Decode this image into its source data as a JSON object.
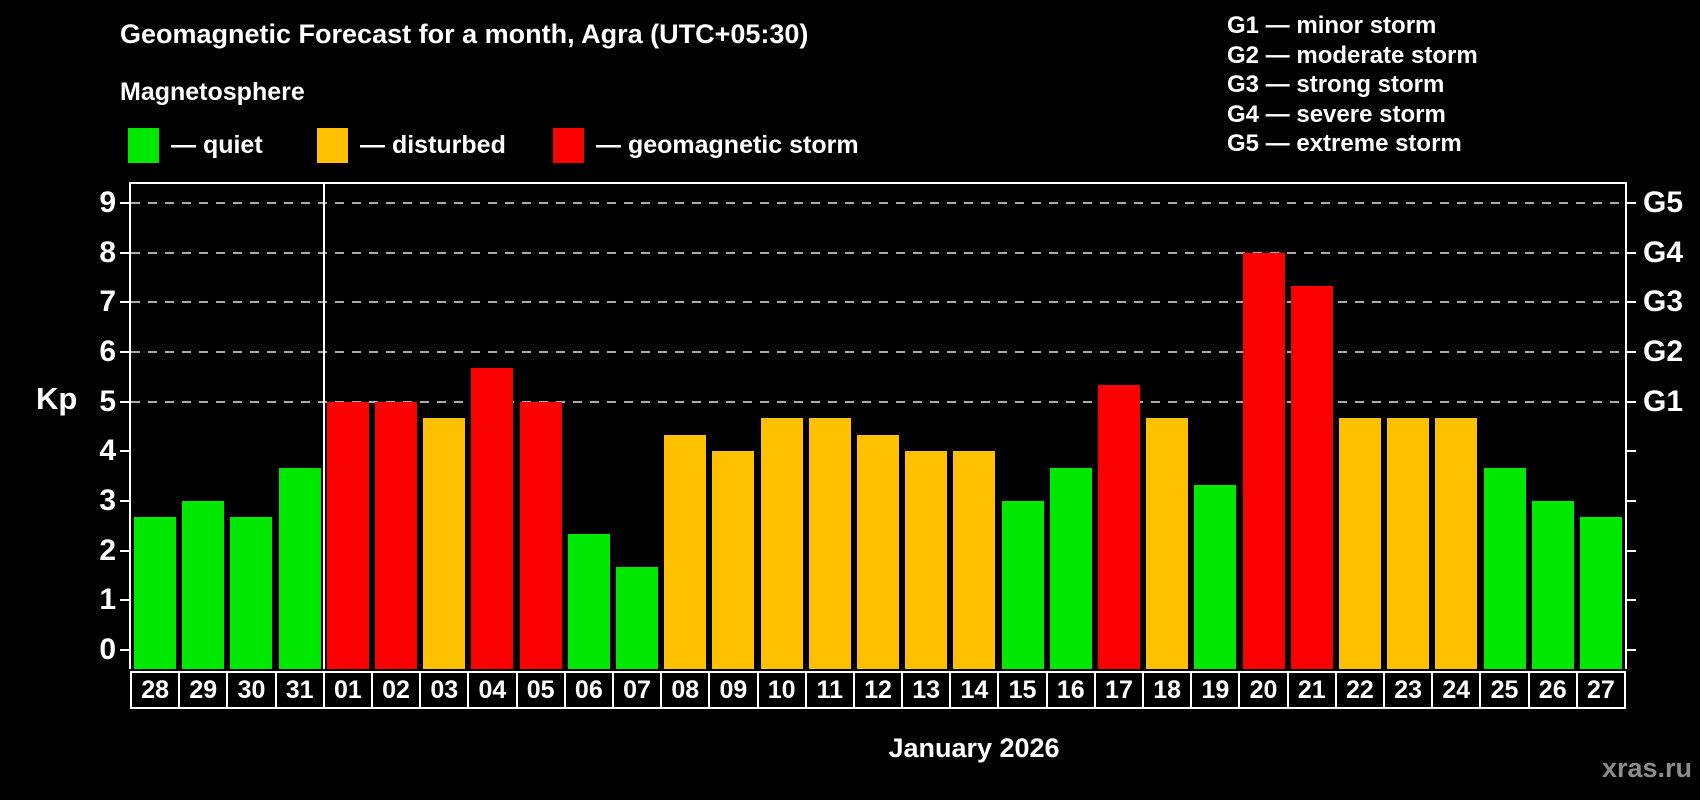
{
  "chart_data": {
    "type": "bar",
    "title": "Geomagnetic Forecast for a month, Agra (UTC+05:30)",
    "subtitle": "Magnetosphere",
    "xlabel": "January 2026",
    "ylabel": "Kp",
    "watermark": "xras.ru",
    "ylim": [
      0,
      9
    ],
    "yticks": [
      0,
      1,
      2,
      3,
      4,
      5,
      6,
      7,
      8,
      9
    ],
    "gridlines_at": [
      5,
      6,
      7,
      8,
      9
    ],
    "grid": "dashed",
    "legend_position": "top-left",
    "legend": [
      {
        "status": "quiet",
        "label": "— quiet",
        "color": "#00e800"
      },
      {
        "status": "disturbed",
        "label": "— disturbed",
        "color": "#ffc000"
      },
      {
        "status": "storm",
        "label": "— geomagnetic storm",
        "color": "#fb0000"
      }
    ],
    "g_legend": [
      "G1 — minor storm",
      "G2 — moderate storm",
      "G3 — strong storm",
      "G4 — severe storm",
      "G5 — extreme storm"
    ],
    "right_axis": [
      {
        "kp": 5,
        "label": "G1"
      },
      {
        "kp": 6,
        "label": "G2"
      },
      {
        "kp": 7,
        "label": "G3"
      },
      {
        "kp": 8,
        "label": "G4"
      },
      {
        "kp": 9,
        "label": "G5"
      }
    ],
    "month_boundary_after_index": 3,
    "categories": [
      "28",
      "29",
      "30",
      "31",
      "01",
      "02",
      "03",
      "04",
      "05",
      "06",
      "07",
      "08",
      "09",
      "10",
      "11",
      "12",
      "13",
      "14",
      "15",
      "16",
      "17",
      "18",
      "19",
      "20",
      "21",
      "22",
      "23",
      "24",
      "25",
      "26",
      "27"
    ],
    "values": [
      2.67,
      3.0,
      2.67,
      3.67,
      5.0,
      5.0,
      4.67,
      5.67,
      5.0,
      2.33,
      1.67,
      4.33,
      4.0,
      4.67,
      4.67,
      4.33,
      4.0,
      4.0,
      3.0,
      3.67,
      5.33,
      4.67,
      3.33,
      8.0,
      7.33,
      4.67,
      4.67,
      4.67,
      3.67,
      3.0,
      2.67
    ],
    "statuses": [
      "quiet",
      "quiet",
      "quiet",
      "quiet",
      "storm",
      "storm",
      "disturbed",
      "storm",
      "storm",
      "quiet",
      "quiet",
      "disturbed",
      "disturbed",
      "disturbed",
      "disturbed",
      "disturbed",
      "disturbed",
      "disturbed",
      "quiet",
      "quiet",
      "storm",
      "disturbed",
      "quiet",
      "storm",
      "storm",
      "disturbed",
      "disturbed",
      "disturbed",
      "quiet",
      "quiet",
      "quiet"
    ],
    "colors": {
      "background": "#000000",
      "text": "#ffffff",
      "grid": "#aaaaaa",
      "axis": "#ffffff",
      "watermark": "#8c8c8c"
    }
  }
}
